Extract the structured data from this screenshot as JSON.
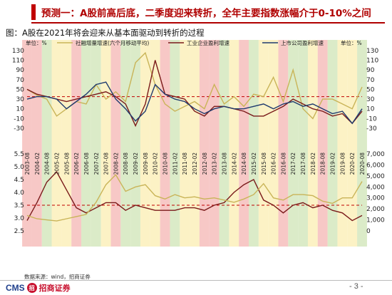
{
  "header": {
    "title": "预测一：A股前高后底，二季度迎来转折，全年主要指数涨幅介于0-10%之间"
  },
  "figure": {
    "caption": "图：A股在2021年将会迎来从基本面驱动到转折的过程"
  },
  "footer": {
    "source": "数据来源：wind，招商证券",
    "logo_en": "CMS",
    "logo_mark": "招",
    "logo_cn": "招商证券",
    "page": "- 3 -"
  },
  "chart_data": [
    {
      "type": "line",
      "panel": "upper",
      "y_left_unit": "单位：%",
      "y_right_unit": "单位：%",
      "ylim": [
        -30,
        140
      ],
      "yticks": [
        -30,
        -10,
        10,
        30,
        50,
        70,
        90,
        110,
        130
      ],
      "right_ticks": [
        -30,
        -10,
        10,
        30,
        50,
        70,
        90,
        110,
        130
      ],
      "reference_line": 35,
      "x": [
        "2003-08",
        "2004-02",
        "2004-08",
        "2005-02",
        "2005-08",
        "2006-02",
        "2006-08",
        "2007-02",
        "2007-08",
        "2008-02",
        "2008-08",
        "2009-02",
        "2009-08",
        "2010-02",
        "2010-08",
        "2011-02",
        "2011-08",
        "2012-02",
        "2012-08",
        "2013-02",
        "2013-08",
        "2014-02",
        "2014-08",
        "2015-02",
        "2015-08",
        "2016-02",
        "2016-08",
        "2017-02",
        "2017-08",
        "2018-02",
        "2018-08",
        "2019-02",
        "2019-08",
        "2020-02",
        "2020-08"
      ],
      "series": [
        {
          "name": "社融增量增速(六个月移动平均)",
          "color": "#c9b458",
          "values": [
            50,
            38,
            30,
            -5,
            10,
            25,
            20,
            60,
            30,
            45,
            25,
            105,
            125,
            60,
            20,
            5,
            15,
            25,
            10,
            60,
            20,
            35,
            15,
            40,
            35,
            75,
            25,
            90,
            10,
            -10,
            30,
            30,
            20,
            10,
            55
          ]
        },
        {
          "name": "工业企业盈利增速",
          "color": "#7a1a1a",
          "values": [
            50,
            40,
            35,
            30,
            25,
            30,
            35,
            40,
            45,
            35,
            20,
            -25,
            20,
            110,
            40,
            35,
            30,
            5,
            -5,
            15,
            15,
            10,
            5,
            -5,
            -5,
            5,
            15,
            30,
            20,
            10,
            5,
            -5,
            0,
            -20,
            5
          ]
        },
        {
          "name": "上市公司盈利增速",
          "color": "#1f3a6e",
          "values": [
            30,
            35,
            35,
            30,
            10,
            25,
            40,
            60,
            65,
            30,
            10,
            -15,
            5,
            60,
            40,
            30,
            25,
            10,
            0,
            10,
            15,
            10,
            10,
            15,
            20,
            10,
            20,
            25,
            15,
            20,
            10,
            0,
            5,
            -20,
            10
          ]
        }
      ]
    },
    {
      "type": "line",
      "panel": "lower",
      "ylim": [
        2.5,
        5.5
      ],
      "yticks": [
        2.5,
        3.0,
        3.5,
        4.0,
        4.5,
        5.0,
        5.5
      ],
      "right_ylim": [
        0,
        7000
      ],
      "right_ticks": [
        0,
        1000,
        2000,
        3000,
        4000,
        5000,
        6000,
        7000
      ],
      "reference_line": 3.5,
      "x": [
        "2003-08",
        "2004-02",
        "2004-08",
        "2005-02",
        "2005-08",
        "2006-02",
        "2006-08",
        "2007-02",
        "2007-08",
        "2008-02",
        "2008-08",
        "2009-02",
        "2009-08",
        "2010-02",
        "2010-08",
        "2011-02",
        "2011-08",
        "2012-02",
        "2012-08",
        "2013-02",
        "2013-08",
        "2014-02",
        "2014-08",
        "2015-02",
        "2015-08",
        "2016-02",
        "2016-08",
        "2017-02",
        "2017-08",
        "2018-02",
        "2018-08",
        "2019-02",
        "2019-08",
        "2020-02",
        "2020-08"
      ],
      "series": [
        {
          "name": "",
          "color": "#7a1a1a",
          "values": [
            2.9,
            3.6,
            4.4,
            4.8,
            4.1,
            3.4,
            3.2,
            3.4,
            3.6,
            3.6,
            3.3,
            3.5,
            3.4,
            3.3,
            3.3,
            3.3,
            3.4,
            3.4,
            3.3,
            3.5,
            3.6,
            4.0,
            4.3,
            4.5,
            3.7,
            3.5,
            3.2,
            3.5,
            3.6,
            3.4,
            3.5,
            3.3,
            3.2,
            2.9,
            3.1
          ]
        },
        {
          "name": "",
          "color": "#c9b458",
          "values": [
            1400,
            1100,
            1000,
            900,
            1100,
            1300,
            1500,
            2600,
            4200,
            5100,
            3600,
            4000,
            4200,
            3200,
            2900,
            3300,
            3000,
            3100,
            2900,
            3000,
            2800,
            2600,
            2900,
            3300,
            4300,
            3000,
            2800,
            3300,
            3300,
            3200,
            2700,
            2500,
            3000,
            3000,
            4500
          ]
        }
      ]
    }
  ]
}
